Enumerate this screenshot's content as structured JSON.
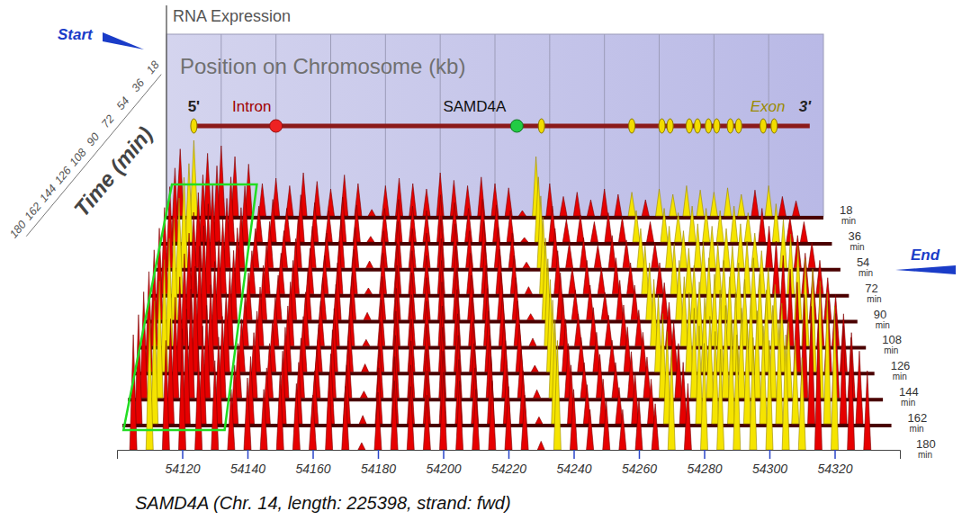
{
  "chart_data": {
    "type": "ridgeline",
    "z_label": "RNA Expression",
    "x_label": "Position on Chromosome (kb)",
    "time_label": "Time (min)",
    "start_label": "Start",
    "end_label": "End",
    "caption": "SAMD4A (Chr. 14, length: 225398, strand: fwd)",
    "grid": true,
    "xlim": [
      54100,
      54340
    ],
    "xticks": [
      54120,
      54140,
      54160,
      54180,
      54200,
      54220,
      54240,
      54260,
      54280,
      54300,
      54320
    ],
    "zlim": [
      0,
      100
    ],
    "time_lim": [
      18,
      180
    ],
    "time_ticks": [
      18,
      36,
      54,
      72,
      90,
      108,
      126,
      144,
      162,
      180
    ],
    "time_unit": "min",
    "highlight": [
      54102,
      54133
    ],
    "gene": {
      "name": "SAMD4A",
      "start": 54110,
      "end": 54335,
      "intron_marker": 54140,
      "gene_marker": 54228,
      "exons": [
        54110,
        54237,
        54270,
        54281,
        54284,
        54291,
        54294,
        54298,
        54301,
        54306,
        54309,
        54318,
        54322
      ],
      "labels": {
        "five": "5'",
        "three": "3'",
        "intron": "Intron",
        "exon": "Exon"
      }
    },
    "x": [
      54105,
      54110,
      54115,
      54120,
      54125,
      54130,
      54135,
      54140,
      54145,
      54150,
      54155,
      54160,
      54165,
      54170,
      54175,
      54180,
      54185,
      54190,
      54195,
      54200,
      54205,
      54210,
      54215,
      54220,
      54225,
      54230,
      54235,
      54240,
      54245,
      54250,
      54255,
      54260,
      54265,
      54270,
      54275,
      54280,
      54285,
      54290,
      54295,
      54300,
      54305,
      54310,
      54315,
      54320,
      54325,
      54330
    ],
    "series": [
      {
        "time": 18,
        "values": [
          62,
          70,
          58,
          65,
          55,
          48,
          30,
          35,
          28,
          40,
          32,
          25,
          38,
          30,
          6,
          28,
          35,
          30,
          25,
          40,
          33,
          28,
          36,
          30,
          26,
          5,
          55,
          30,
          18,
          22,
          15,
          25,
          20,
          22,
          15,
          25,
          20,
          28,
          24,
          22,
          26,
          20,
          24,
          28,
          18,
          14
        ]
      },
      {
        "time": 36,
        "values": [
          66,
          70,
          60,
          68,
          58,
          50,
          32,
          38,
          30,
          42,
          35,
          28,
          40,
          33,
          5,
          30,
          38,
          32,
          28,
          42,
          35,
          30,
          38,
          33,
          28,
          4,
          58,
          32,
          20,
          24,
          18,
          26,
          22,
          28,
          18,
          30,
          26,
          32,
          30,
          28,
          32,
          26,
          30,
          34,
          22,
          18
        ]
      },
      {
        "time": 54,
        "values": [
          70,
          78,
          65,
          72,
          60,
          52,
          34,
          40,
          32,
          44,
          36,
          30,
          42,
          35,
          6,
          32,
          40,
          34,
          30,
          45,
          38,
          32,
          40,
          35,
          30,
          5,
          62,
          34,
          22,
          26,
          20,
          28,
          24,
          34,
          22,
          36,
          32,
          38,
          36,
          34,
          38,
          30,
          36,
          42,
          28,
          22
        ]
      },
      {
        "time": 72,
        "values": [
          72,
          80,
          68,
          75,
          62,
          55,
          36,
          42,
          34,
          46,
          38,
          32,
          44,
          37,
          5,
          34,
          42,
          36,
          32,
          46,
          40,
          34,
          42,
          37,
          32,
          6,
          64,
          36,
          22,
          28,
          22,
          30,
          26,
          40,
          26,
          42,
          38,
          44,
          42,
          40,
          44,
          36,
          44,
          50,
          34,
          28
        ]
      },
      {
        "time": 90,
        "values": [
          74,
          82,
          70,
          76,
          64,
          56,
          38,
          44,
          36,
          48,
          40,
          34,
          46,
          38,
          6,
          35,
          44,
          38,
          34,
          48,
          42,
          36,
          44,
          38,
          34,
          5,
          66,
          38,
          24,
          28,
          22,
          32,
          28,
          46,
          30,
          48,
          44,
          50,
          48,
          46,
          50,
          42,
          52,
          60,
          40,
          34
        ]
      },
      {
        "time": 108,
        "values": [
          75,
          84,
          72,
          78,
          66,
          58,
          38,
          46,
          38,
          50,
          42,
          35,
          48,
          40,
          5,
          36,
          45,
          40,
          35,
          50,
          44,
          38,
          45,
          40,
          35,
          6,
          68,
          38,
          25,
          30,
          24,
          32,
          28,
          52,
          34,
          54,
          50,
          56,
          54,
          52,
          56,
          48,
          60,
          68,
          46,
          40
        ]
      },
      {
        "time": 126,
        "values": [
          76,
          85,
          72,
          80,
          66,
          60,
          40,
          46,
          38,
          50,
          42,
          36,
          48,
          40,
          6,
          38,
          46,
          40,
          36,
          50,
          44,
          38,
          46,
          40,
          36,
          5,
          70,
          40,
          26,
          30,
          24,
          34,
          30,
          58,
          38,
          60,
          56,
          62,
          60,
          58,
          62,
          52,
          68,
          78,
          54,
          44
        ]
      },
      {
        "time": 144,
        "values": [
          78,
          86,
          74,
          80,
          68,
          60,
          40,
          48,
          40,
          52,
          44,
          36,
          50,
          42,
          5,
          38,
          46,
          42,
          36,
          52,
          46,
          40,
          46,
          42,
          36,
          6,
          72,
          40,
          26,
          32,
          26,
          34,
          30,
          62,
          40,
          66,
          60,
          68,
          66,
          64,
          68,
          56,
          76,
          86,
          62,
          48
        ]
      },
      {
        "time": 162,
        "values": [
          78,
          88,
          75,
          82,
          70,
          62,
          42,
          48,
          40,
          52,
          44,
          38,
          50,
          42,
          6,
          40,
          48,
          42,
          38,
          52,
          46,
          40,
          48,
          42,
          38,
          5,
          74,
          42,
          28,
          32,
          26,
          36,
          32,
          66,
          44,
          70,
          66,
          74,
          72,
          70,
          74,
          60,
          84,
          94,
          70,
          52
        ]
      },
      {
        "time": 180,
        "values": [
          80,
          90,
          76,
          84,
          70,
          62,
          42,
          50,
          42,
          54,
          46,
          38,
          52,
          44,
          5,
          40,
          48,
          44,
          38,
          54,
          48,
          42,
          48,
          44,
          38,
          6,
          76,
          42,
          28,
          34,
          28,
          36,
          32,
          70,
          46,
          74,
          70,
          80,
          78,
          76,
          80,
          64,
          90,
          100,
          78,
          55
        ]
      }
    ]
  }
}
